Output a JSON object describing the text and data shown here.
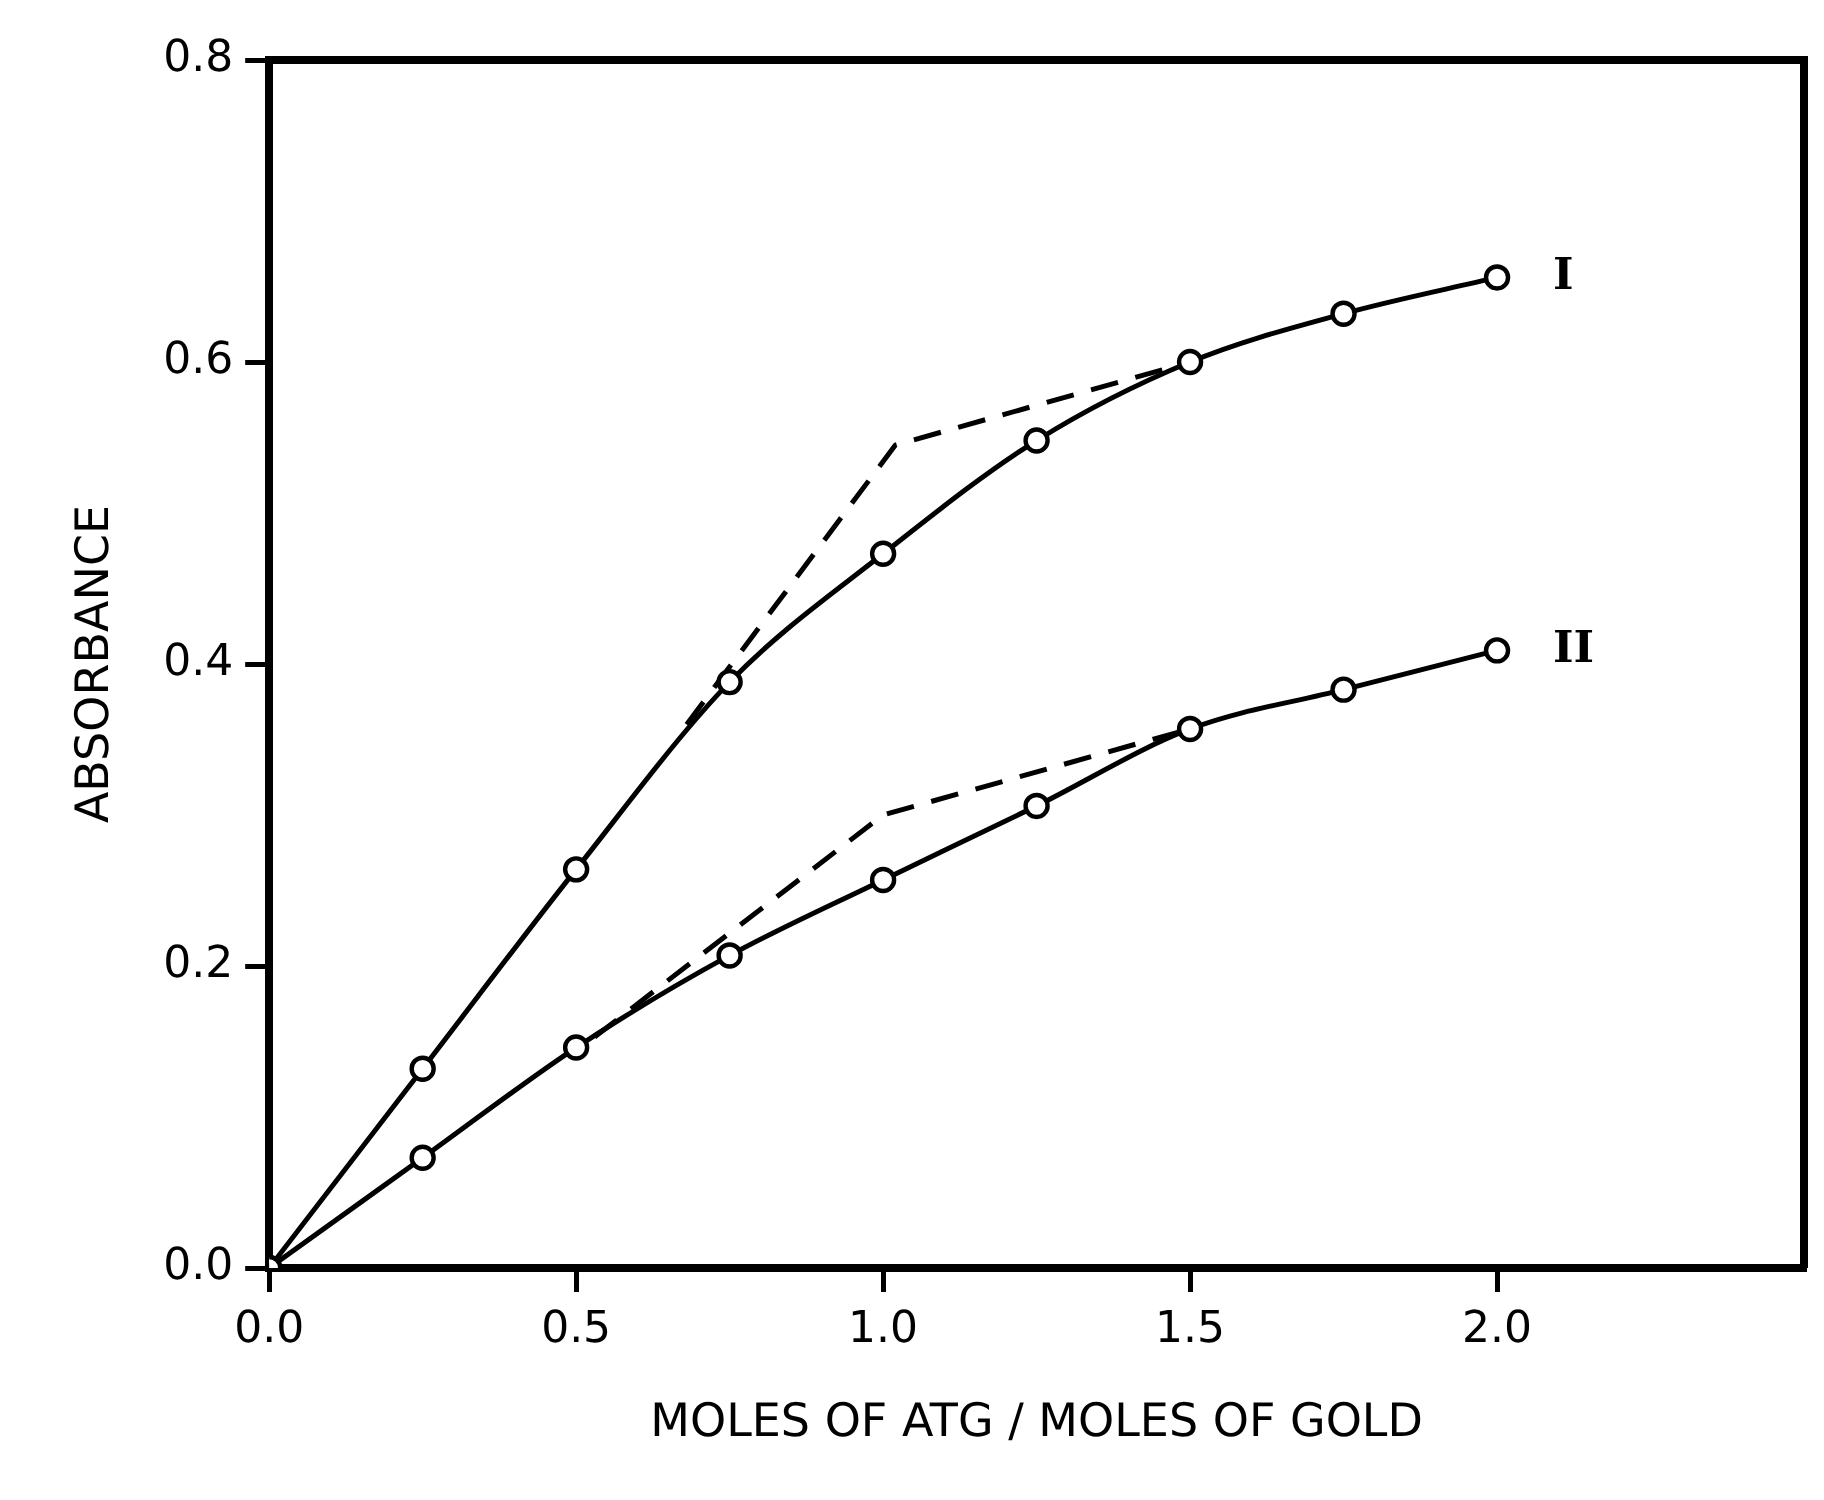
{
  "chart_data": {
    "type": "line",
    "xlabel": "MOLES OF ATG / MOLES OF GOLD",
    "ylabel": "ABSORBANCE",
    "xlim": [
      0,
      2.5
    ],
    "ylim": [
      0,
      0.8
    ],
    "xticks": [
      {
        "value": 0,
        "label": "0.0"
      },
      {
        "value": 0.5,
        "label": "0.5"
      },
      {
        "value": 1,
        "label": "1.0"
      },
      {
        "value": 1.5,
        "label": "1.5"
      },
      {
        "value": 2,
        "label": "2.0"
      }
    ],
    "yticks": [
      {
        "value": 0,
        "label": "0.0"
      },
      {
        "value": 0.2,
        "label": "0.2"
      },
      {
        "value": 0.4,
        "label": "0.4"
      },
      {
        "value": 0.6,
        "label": "0.6"
      },
      {
        "value": 0.8,
        "label": "0.8"
      }
    ],
    "grid": false,
    "legend": false,
    "marker": "circle",
    "line_style": "solid",
    "series": [
      {
        "name": "I",
        "color": "#000000",
        "x": [
          0,
          0.25,
          0.5,
          0.75,
          1,
          1.25,
          1.5,
          1.75,
          2
        ],
        "values": [
          0,
          0.132,
          0.264,
          0.388,
          0.473,
          0.548,
          0.6,
          0.632,
          0.656
        ]
      },
      {
        "name": "II",
        "color": "#000000",
        "x": [
          0,
          0.25,
          0.5,
          0.75,
          1,
          1.25,
          1.5,
          1.75,
          2
        ],
        "values": [
          0,
          0.073,
          0.146,
          0.207,
          0.257,
          0.306,
          0.357,
          0.383,
          0.409
        ]
      },
      {
        "color": "#000000",
        "marker": "none",
        "line_style": "dashed",
        "x": [
          0.68,
          1.02,
          1.5
        ],
        "values": [
          0.36,
          0.545,
          0.6
        ]
      },
      {
        "color": "#000000",
        "marker": "none",
        "line_style": "dashed",
        "x": [
          0.53,
          1.0,
          1.5
        ],
        "values": [
          0.153,
          0.3,
          0.357
        ]
      }
    ]
  }
}
